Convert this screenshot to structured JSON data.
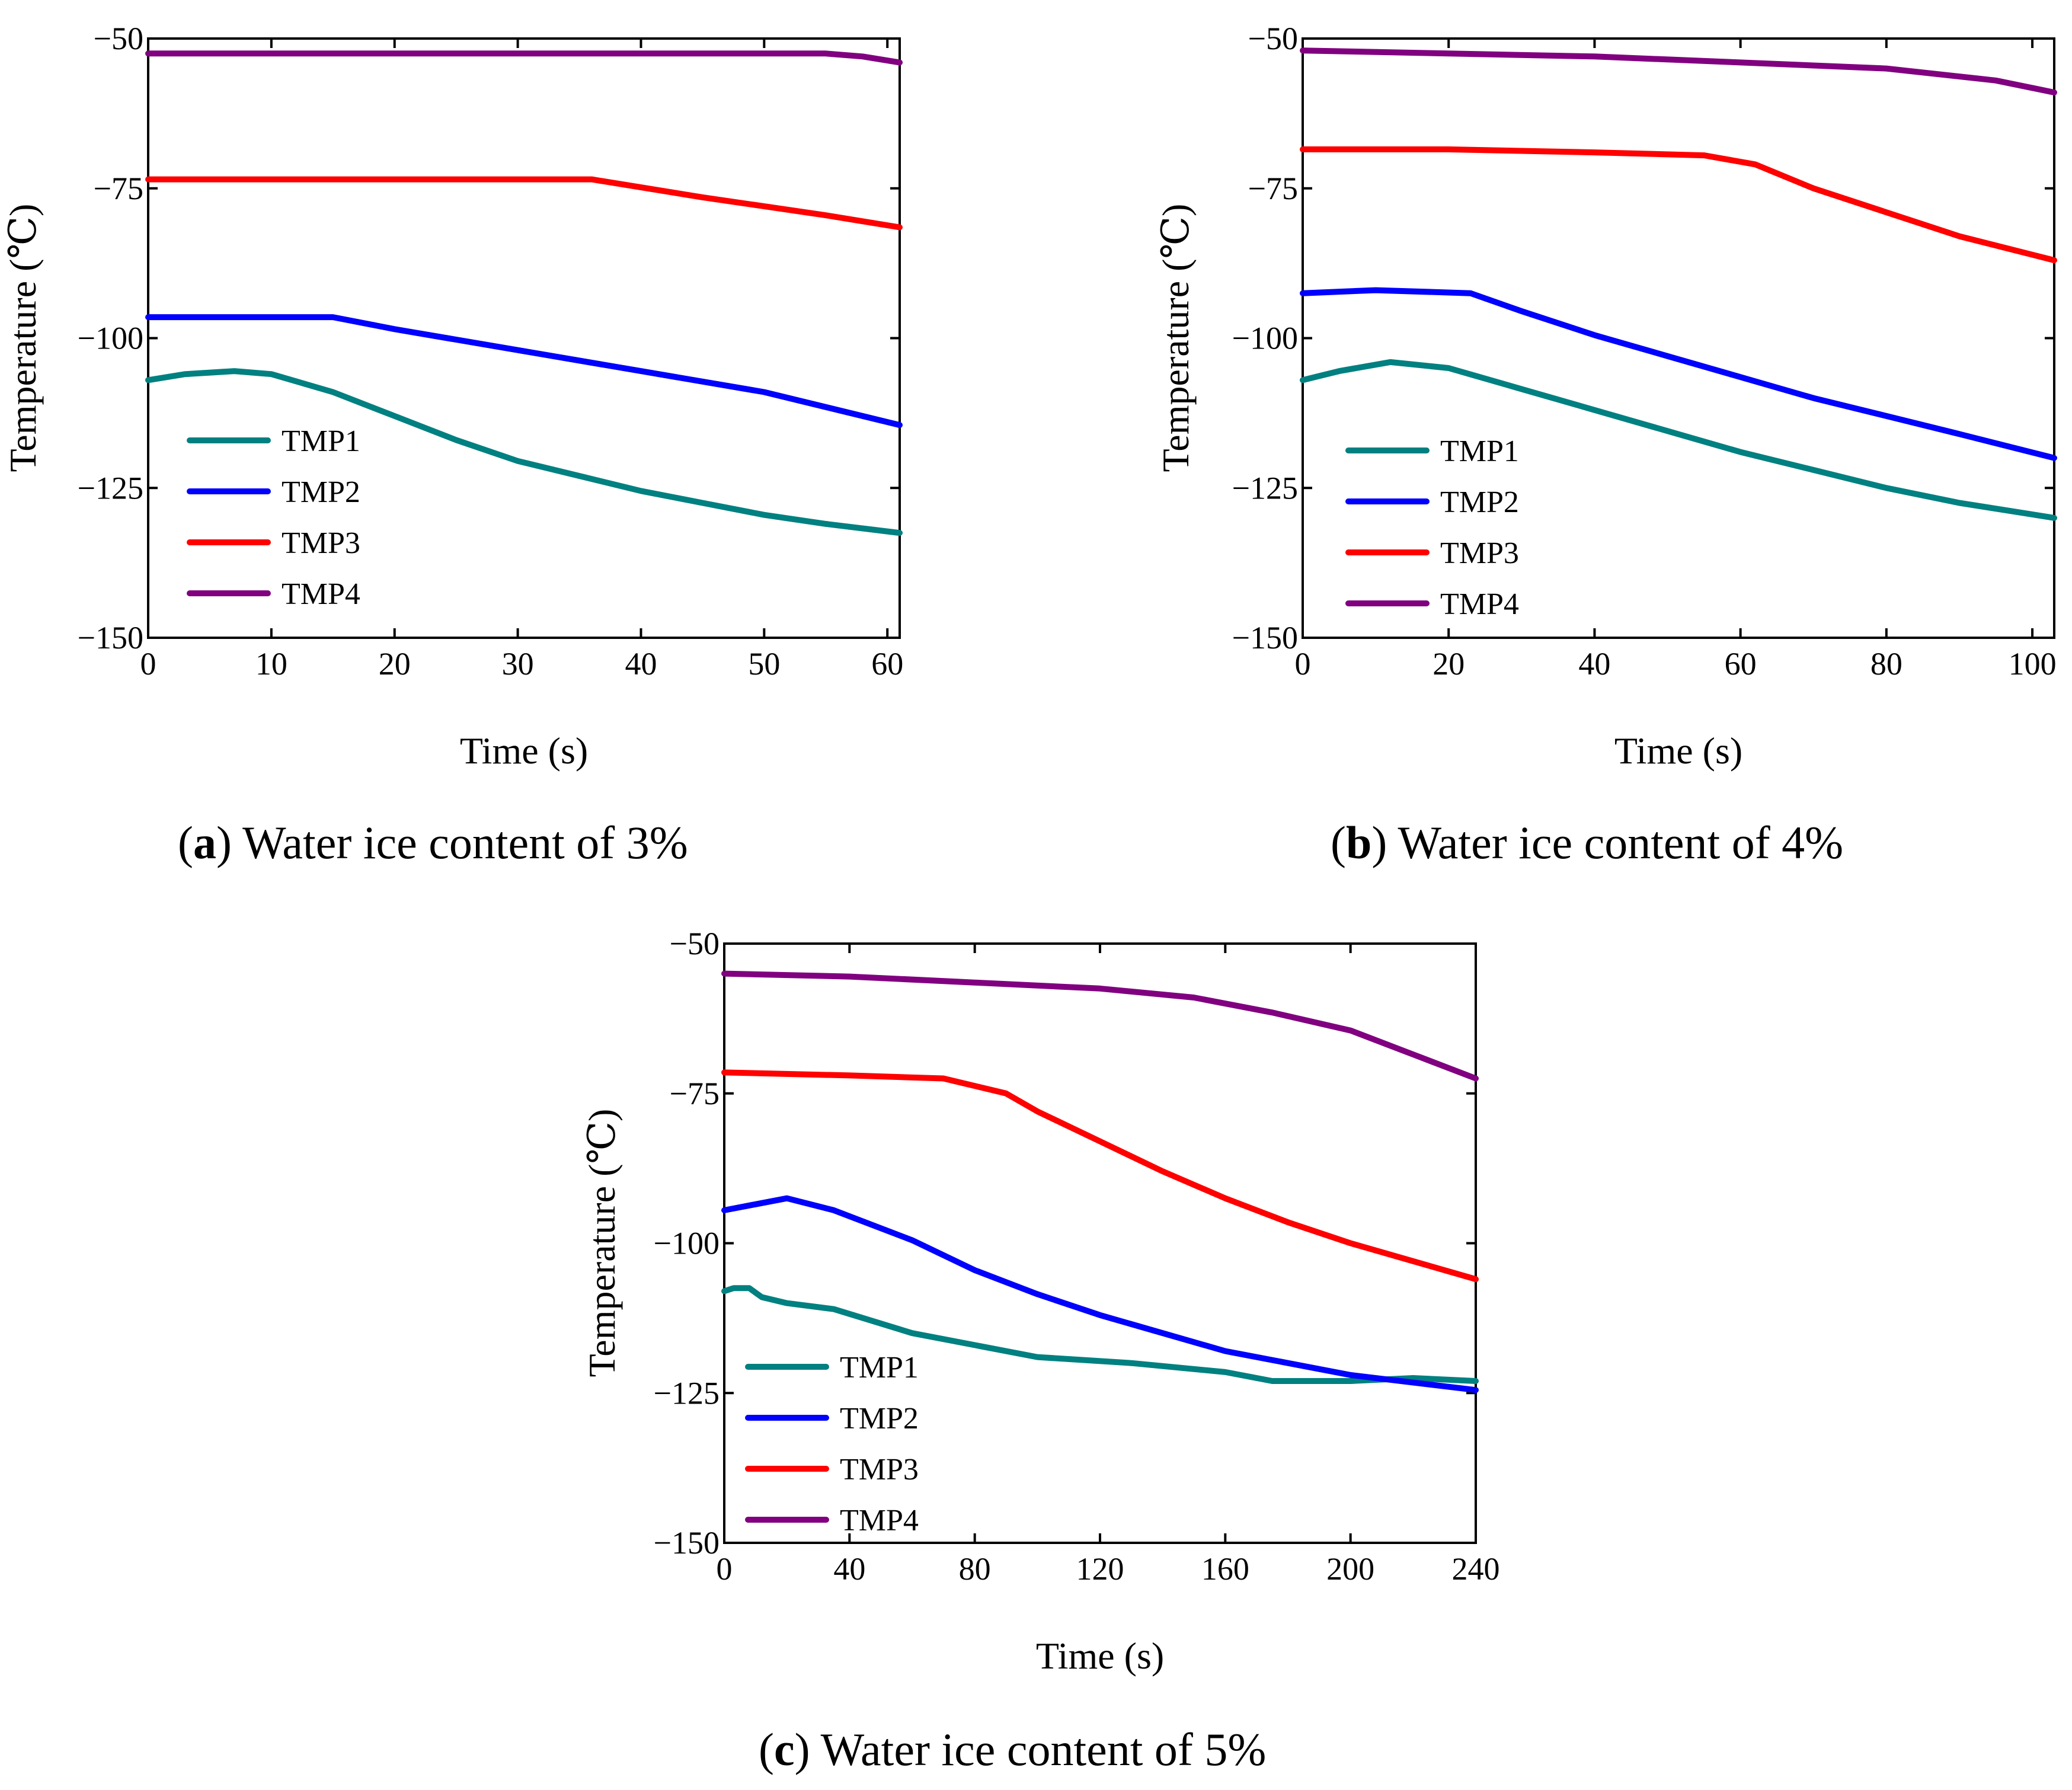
{
  "chart_data": [
    {
      "type": "line",
      "panel_letter": "a",
      "caption_text": ") Water ice content of 3%",
      "xlabel": "Time (s)",
      "ylabel": "Temperature (℃)",
      "xlim": [
        0,
        61
      ],
      "ylim": [
        -150,
        -50
      ],
      "xticks": [
        0,
        10,
        20,
        30,
        40,
        50,
        60
      ],
      "yticks": [
        -50,
        -75,
        -100,
        -125,
        -150
      ],
      "ytick_labels": [
        "−50",
        "−75",
        "−100",
        "−125",
        "−150"
      ],
      "legend": [
        "TMP1",
        "TMP2",
        "TMP3",
        "TMP4"
      ],
      "series": [
        {
          "name": "TMP1",
          "color": "#008080",
          "x": [
            0,
            3,
            7,
            10,
            15,
            20,
            25,
            30,
            35,
            40,
            45,
            50,
            55,
            61
          ],
          "y": [
            -107,
            -106,
            -105.5,
            -106,
            -109,
            -113,
            -117,
            -120.5,
            -123,
            -125.5,
            -127.5,
            -129.5,
            -131,
            -132.5
          ]
        },
        {
          "name": "TMP2",
          "color": "#0000ff",
          "x": [
            0,
            15,
            20,
            30,
            40,
            50,
            61
          ],
          "y": [
            -96.5,
            -96.5,
            -98.5,
            -102,
            -105.5,
            -109,
            -114.5
          ]
        },
        {
          "name": "TMP3",
          "color": "#ff0000",
          "x": [
            0,
            36,
            45,
            55,
            61
          ],
          "y": [
            -73.5,
            -73.5,
            -76.5,
            -79.5,
            -81.5
          ]
        },
        {
          "name": "TMP4",
          "color": "#800080",
          "x": [
            0,
            55,
            58,
            61
          ],
          "y": [
            -52.5,
            -52.5,
            -53,
            -54
          ]
        }
      ]
    },
    {
      "type": "line",
      "panel_letter": "b",
      "caption_text": ") Water ice content of 4%",
      "xlabel": "Time (s)",
      "ylabel": "Temperature (℃)",
      "xlim": [
        0,
        103
      ],
      "ylim": [
        -150,
        -50
      ],
      "xticks": [
        0,
        20,
        40,
        60,
        80,
        100
      ],
      "yticks": [
        -50,
        -75,
        -100,
        -125,
        -150
      ],
      "ytick_labels": [
        "−50",
        "−75",
        "−100",
        "−125",
        "−150"
      ],
      "legend": [
        "TMP1",
        "TMP2",
        "TMP3",
        "TMP4"
      ],
      "series": [
        {
          "name": "TMP1",
          "color": "#008080",
          "x": [
            0,
            5,
            12,
            20,
            30,
            40,
            50,
            60,
            70,
            80,
            90,
            103
          ],
          "y": [
            -107,
            -105.5,
            -104,
            -105,
            -108.5,
            -112,
            -115.5,
            -119,
            -122,
            -125,
            -127.5,
            -130
          ]
        },
        {
          "name": "TMP2",
          "color": "#0000ff",
          "x": [
            0,
            10,
            23,
            30,
            40,
            50,
            60,
            70,
            80,
            90,
            103
          ],
          "y": [
            -92.5,
            -92,
            -92.5,
            -95.5,
            -99.5,
            -103,
            -106.5,
            -110,
            -113,
            -116,
            -120
          ]
        },
        {
          "name": "TMP3",
          "color": "#ff0000",
          "x": [
            0,
            20,
            40,
            55,
            62,
            70,
            80,
            90,
            103
          ],
          "y": [
            -68.5,
            -68.5,
            -69,
            -69.5,
            -71,
            -75,
            -79,
            -83,
            -87
          ]
        },
        {
          "name": "TMP4",
          "color": "#800080",
          "x": [
            0,
            20,
            40,
            60,
            80,
            95,
            103
          ],
          "y": [
            -52,
            -52.5,
            -53,
            -54,
            -55,
            -57,
            -59
          ]
        }
      ]
    },
    {
      "type": "line",
      "panel_letter": "c",
      "caption_text": ") Water ice content of 5%",
      "xlabel": "Time (s)",
      "ylabel": "Temperature (℃)",
      "xlim": [
        0,
        240
      ],
      "ylim": [
        -150,
        -50
      ],
      "xticks": [
        0,
        40,
        80,
        120,
        160,
        200,
        240
      ],
      "yticks": [
        -50,
        -75,
        -100,
        -125,
        -150
      ],
      "ytick_labels": [
        "−50",
        "−75",
        "−100",
        "−125",
        "−150"
      ],
      "legend": [
        "TMP1",
        "TMP2",
        "TMP3",
        "TMP4"
      ],
      "series": [
        {
          "name": "TMP1",
          "color": "#008080",
          "x": [
            0,
            3,
            8,
            12,
            20,
            35,
            60,
            80,
            100,
            130,
            160,
            175,
            200,
            220,
            240
          ],
          "y": [
            -108,
            -107.5,
            -107.5,
            -109,
            -110,
            -111,
            -115,
            -117,
            -119,
            -120,
            -121.5,
            -123,
            -123,
            -122.5,
            -123
          ]
        },
        {
          "name": "TMP2",
          "color": "#0000ff",
          "x": [
            0,
            10,
            20,
            35,
            60,
            80,
            100,
            120,
            160,
            200,
            240
          ],
          "y": [
            -94.5,
            -93.5,
            -92.5,
            -94.5,
            -99.5,
            -104.5,
            -108.5,
            -112,
            -118,
            -122,
            -124.5
          ]
        },
        {
          "name": "TMP3",
          "color": "#ff0000",
          "x": [
            0,
            40,
            70,
            90,
            100,
            120,
            140,
            160,
            180,
            200,
            220,
            240
          ],
          "y": [
            -71.5,
            -72,
            -72.5,
            -75,
            -78,
            -83,
            -88,
            -92.5,
            -96.5,
            -100,
            -103,
            -106
          ]
        },
        {
          "name": "TMP4",
          "color": "#800080",
          "x": [
            0,
            40,
            80,
            120,
            150,
            175,
            200,
            220,
            240
          ],
          "y": [
            -55,
            -55.5,
            -56.5,
            -57.5,
            -59,
            -61.5,
            -64.5,
            -68.5,
            -72.5
          ]
        }
      ]
    }
  ]
}
